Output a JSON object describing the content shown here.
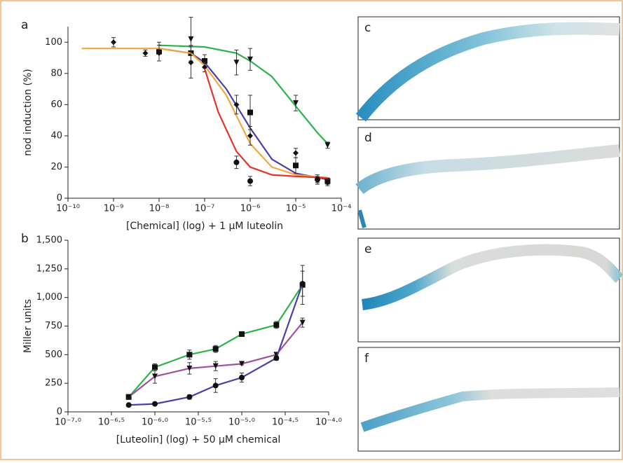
{
  "chart_data": [
    {
      "type": "scatter",
      "panel": "a",
      "ylabel": "nod induction (%)",
      "xlabel": "[Chemical] (log) + 1 μM luteolin",
      "xscale": "log",
      "xlim": [
        1e-10,
        0.0001
      ],
      "xticks": [
        {
          "value": 1e-10,
          "label": "10⁻¹⁰"
        },
        {
          "value": 1e-09,
          "label": "10⁻⁹"
        },
        {
          "value": 1e-08,
          "label": "10⁻⁸"
        },
        {
          "value": 1e-07,
          "label": "10⁻⁷"
        },
        {
          "value": 1e-06,
          "label": "10⁻⁶"
        },
        {
          "value": 1e-05,
          "label": "10⁻⁵"
        },
        {
          "value": 0.0001,
          "label": "10⁻⁴"
        }
      ],
      "ylim": [
        0,
        110
      ],
      "yticks": [
        0,
        20,
        40,
        60,
        80,
        100
      ],
      "marker_color": "#111111",
      "series": [
        {
          "color": "#2db34a",
          "marker": "triangle",
          "x": [
            5e-08,
            5e-07,
            1e-06,
            1e-05,
            5e-05
          ],
          "values": [
            102,
            87,
            89,
            61,
            34
          ],
          "errors": [
            14,
            8,
            7,
            5,
            2
          ],
          "fit_x": [
            1e-08,
            1e-07,
            5e-07,
            1e-06,
            3e-06,
            1e-05,
            3e-05,
            5e-05
          ],
          "fit_values": [
            98,
            97,
            93,
            88,
            78,
            59,
            42,
            35
          ]
        },
        {
          "color": "#4b3fa6",
          "marker": "square",
          "x": [
            1e-08,
            5e-08,
            1e-07,
            1e-06,
            1e-05,
            5e-05
          ],
          "values": [
            94,
            93,
            88,
            55,
            21,
            11
          ],
          "errors": [
            6,
            5,
            4,
            11,
            5,
            2
          ],
          "fit_x": [
            1e-08,
            5e-08,
            1e-07,
            3e-07,
            1e-06,
            3e-06,
            1e-05,
            5e-05
          ],
          "fit_values": [
            96,
            93,
            87,
            70,
            45,
            25,
            16,
            12
          ]
        },
        {
          "color": "#f4a640",
          "marker": "diamond",
          "x": [
            1e-09,
            5e-09,
            1e-08,
            5e-08,
            1e-07,
            5e-07,
            1e-06,
            1e-05,
            3e-05,
            5e-05
          ],
          "values": [
            100,
            93,
            93,
            87,
            84,
            60,
            40,
            29,
            12,
            10
          ],
          "errors": [
            3,
            2,
            5,
            10,
            3,
            6,
            6,
            3,
            3,
            2
          ],
          "fit_x": [
            2e-10,
            1e-08,
            5e-08,
            1e-07,
            3e-07,
            1e-06,
            3e-06,
            1e-05,
            5e-05
          ],
          "fit_values": [
            96,
            96,
            93,
            85,
            66,
            35,
            20,
            15,
            13
          ]
        },
        {
          "color": "#e5332a",
          "marker": "circle",
          "x": [
            5e-07,
            1e-06,
            3e-05
          ],
          "values": [
            23,
            11,
            12
          ],
          "errors": [
            4,
            3,
            2
          ],
          "fit_x": [
            1e-07,
            2e-07,
            5e-07,
            1e-06,
            3e-06,
            1e-05,
            5e-05
          ],
          "fit_values": [
            83,
            55,
            30,
            20,
            15,
            14,
            13
          ]
        }
      ]
    },
    {
      "type": "line",
      "panel": "b",
      "ylabel": "Miller units",
      "xlabel": "[Luteolin] (log) + 50 μM chemical",
      "xscale": "log",
      "xlim": [
        1e-07,
        0.0001
      ],
      "xticks": [
        {
          "value": 1e-07,
          "label": "10⁻⁷·⁰"
        },
        {
          "value": 3.162e-07,
          "label": "10⁻⁶·⁵"
        },
        {
          "value": 1e-06,
          "label": "10⁻⁶·⁰"
        },
        {
          "value": 3.162e-06,
          "label": "10⁻⁵·⁵"
        },
        {
          "value": 1e-05,
          "label": "10⁻⁵·⁰"
        },
        {
          "value": 3.162e-05,
          "label": "10⁻⁴·⁵"
        },
        {
          "value": 0.0001,
          "label": "10⁻⁴·⁰"
        }
      ],
      "ylim": [
        0,
        1500
      ],
      "yticks": [
        0,
        250,
        500,
        750,
        {
          "value": 1000,
          "label": "1,000"
        },
        {
          "value": 1250,
          "label": "1,250"
        },
        {
          "value": 1500,
          "label": "1,500"
        }
      ],
      "marker_color": "#111111",
      "series": [
        {
          "color": "#2db34a",
          "marker": "square",
          "x": [
            5e-07,
            1e-06,
            2.5e-06,
            5e-06,
            1e-05,
            2.5e-05,
            5e-05
          ],
          "values": [
            130,
            390,
            500,
            550,
            680,
            760,
            1110
          ],
          "errors": [
            10,
            30,
            40,
            30,
            15,
            30,
            170
          ]
        },
        {
          "color": "#a050a0",
          "marker": "triangle",
          "x": [
            5e-07,
            1e-06,
            2.5e-06,
            5e-06,
            1e-05,
            2.5e-05,
            5e-05
          ],
          "values": [
            130,
            310,
            380,
            400,
            420,
            500,
            780
          ],
          "errors": [
            10,
            60,
            50,
            40,
            10,
            20,
            40
          ]
        },
        {
          "color": "#4b3fa6",
          "marker": "circle",
          "x": [
            5e-07,
            1e-06,
            2.5e-06,
            5e-06,
            1e-05,
            2.5e-05,
            5e-05
          ],
          "values": [
            60,
            70,
            130,
            230,
            300,
            470,
            1120
          ],
          "errors": [
            5,
            10,
            20,
            60,
            40,
            20,
            110
          ]
        }
      ]
    }
  ],
  "images": [
    {
      "label": "c"
    },
    {
      "label": "d"
    },
    {
      "label": "e"
    },
    {
      "label": "f"
    }
  ]
}
